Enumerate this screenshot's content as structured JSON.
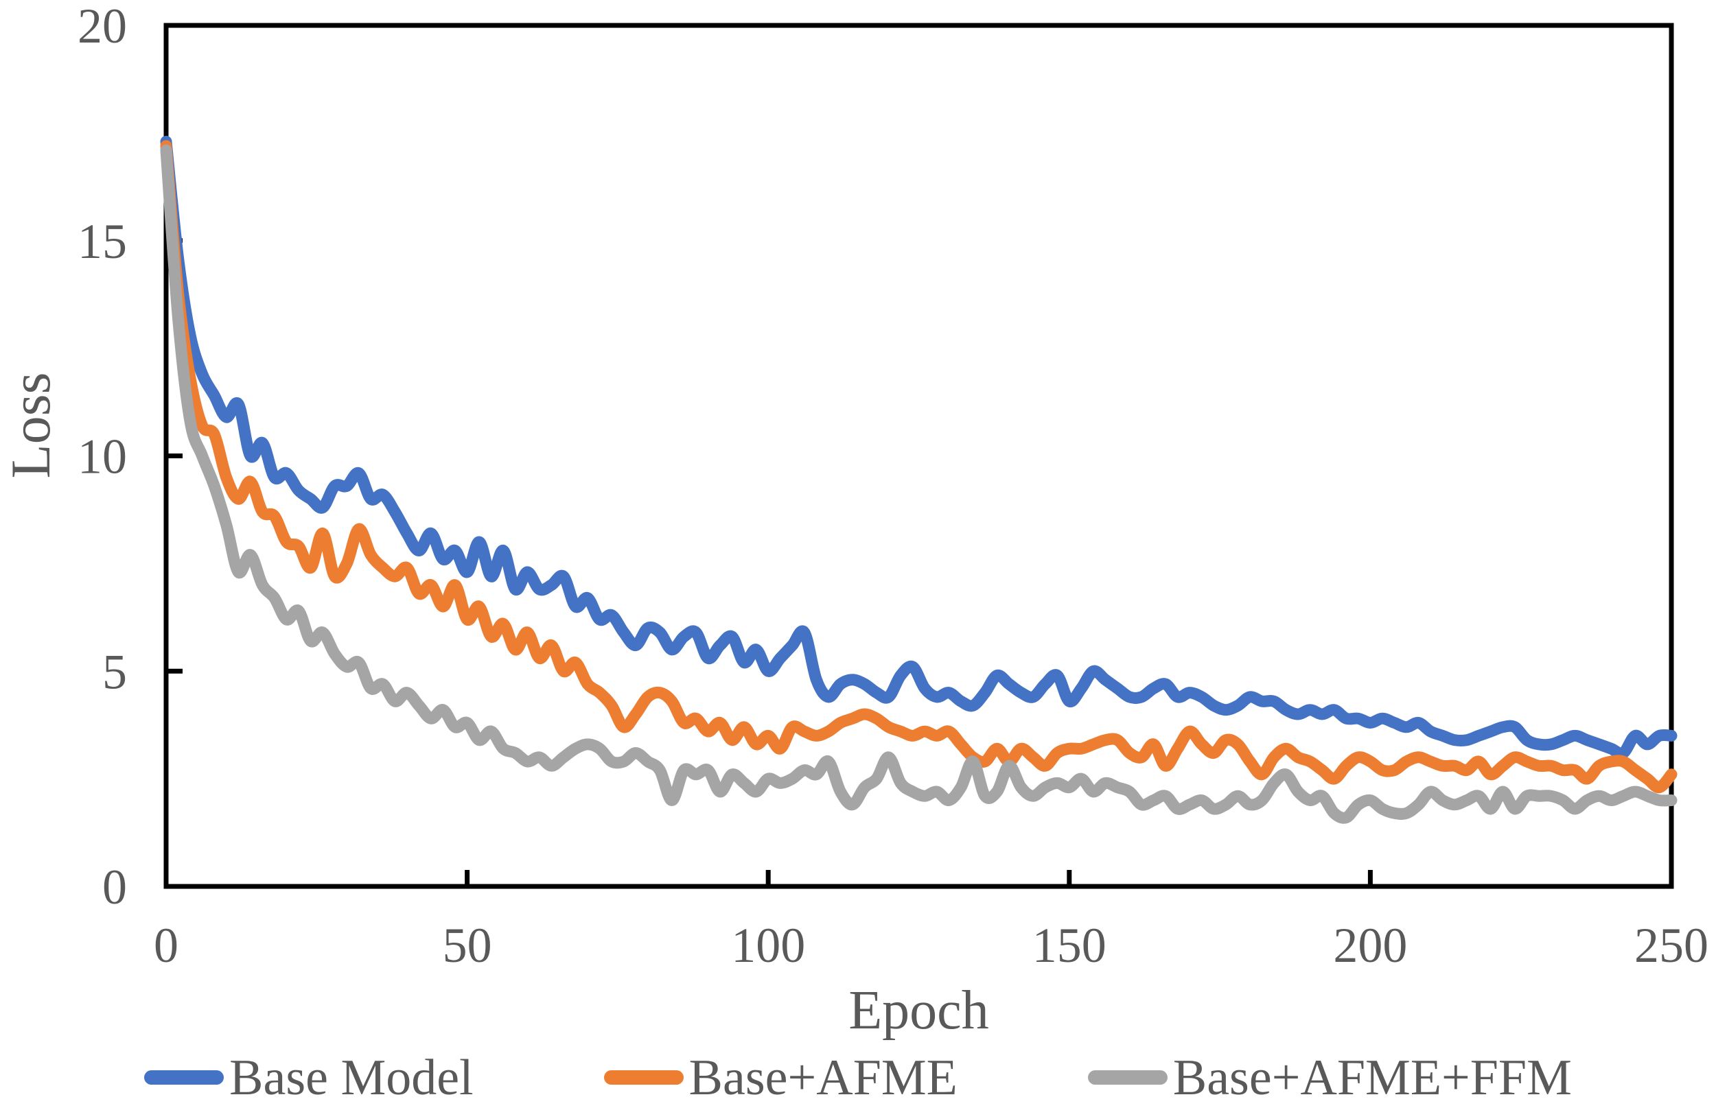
{
  "colors": {
    "background": "#FFFFFF",
    "axis_line": "#000000",
    "axis_text": "#595959",
    "series_blue": "#4472C4",
    "series_orange": "#ED7D31",
    "series_gray": "#A5A5A5"
  },
  "chart_data": {
    "type": "line",
    "title": "",
    "xlabel": "Epoch",
    "ylabel": "Loss",
    "xlim": [
      0,
      250
    ],
    "ylim": [
      0,
      20
    ],
    "x_ticks": [
      0,
      50,
      100,
      150,
      200,
      250
    ],
    "y_ticks": [
      0,
      5,
      10,
      15,
      20
    ],
    "grid": false,
    "legend_position": "bottom",
    "x": [
      0,
      2,
      4,
      6,
      8,
      10,
      12,
      14,
      16,
      18,
      20,
      22,
      24,
      26,
      28,
      30,
      32,
      34,
      36,
      38,
      40,
      42,
      44,
      46,
      48,
      50,
      52,
      54,
      56,
      58,
      60,
      62,
      64,
      66,
      68,
      70,
      72,
      74,
      76,
      78,
      80,
      82,
      84,
      86,
      88,
      90,
      92,
      94,
      96,
      98,
      100,
      102,
      104,
      106,
      108,
      110,
      112,
      114,
      116,
      118,
      120,
      122,
      124,
      126,
      128,
      130,
      132,
      134,
      136,
      138,
      140,
      142,
      144,
      146,
      148,
      150,
      152,
      154,
      156,
      158,
      160,
      162,
      164,
      166,
      168,
      170,
      172,
      174,
      176,
      178,
      180,
      182,
      184,
      186,
      188,
      190,
      192,
      194,
      196,
      198,
      200,
      202,
      204,
      206,
      208,
      210,
      212,
      214,
      216,
      218,
      220,
      222,
      224,
      226,
      228,
      230,
      232,
      234,
      236,
      238,
      240,
      242,
      244,
      246,
      248,
      250
    ],
    "series": [
      {
        "name": "Base Model",
        "color": "#4472C4",
        "values": [
          17.3,
          14.6,
          12.8,
          11.9,
          11.4,
          10.9,
          11.2,
          10.0,
          10.3,
          9.5,
          9.6,
          9.2,
          9.0,
          8.8,
          9.3,
          9.3,
          9.6,
          9.0,
          9.1,
          8.7,
          8.2,
          7.8,
          8.2,
          7.6,
          7.8,
          7.3,
          8.0,
          7.2,
          7.8,
          6.9,
          7.3,
          6.9,
          7.0,
          7.2,
          6.5,
          6.7,
          6.2,
          6.3,
          5.9,
          5.6,
          6.0,
          5.9,
          5.5,
          5.8,
          5.9,
          5.3,
          5.6,
          5.8,
          5.2,
          5.5,
          5.0,
          5.3,
          5.6,
          5.9,
          4.8,
          4.4,
          4.7,
          4.8,
          4.7,
          4.5,
          4.4,
          4.9,
          5.1,
          4.6,
          4.4,
          4.5,
          4.3,
          4.2,
          4.5,
          4.9,
          4.7,
          4.5,
          4.4,
          4.7,
          4.9,
          4.3,
          4.6,
          5.0,
          4.8,
          4.6,
          4.4,
          4.4,
          4.6,
          4.7,
          4.4,
          4.5,
          4.4,
          4.2,
          4.1,
          4.2,
          4.4,
          4.3,
          4.3,
          4.1,
          4.0,
          4.1,
          4.0,
          4.1,
          3.9,
          3.9,
          3.8,
          3.9,
          3.8,
          3.7,
          3.8,
          3.6,
          3.5,
          3.4,
          3.4,
          3.5,
          3.6,
          3.7,
          3.7,
          3.4,
          3.3,
          3.3,
          3.4,
          3.5,
          3.4,
          3.3,
          3.2,
          3.1,
          3.5,
          3.3,
          3.5,
          3.5
        ]
      },
      {
        "name": "Base+AFME",
        "color": "#ED7D31",
        "values": [
          17.2,
          13.8,
          11.8,
          10.7,
          10.5,
          9.5,
          9.0,
          9.4,
          8.7,
          8.6,
          8.0,
          7.9,
          7.4,
          8.2,
          7.2,
          7.5,
          8.3,
          7.7,
          7.4,
          7.2,
          7.4,
          6.8,
          7.0,
          6.5,
          7.0,
          6.2,
          6.5,
          5.8,
          6.1,
          5.5,
          5.9,
          5.3,
          5.6,
          5.0,
          5.2,
          4.7,
          4.5,
          4.2,
          3.7,
          4.0,
          4.4,
          4.5,
          4.3,
          3.8,
          3.9,
          3.6,
          3.8,
          3.4,
          3.7,
          3.3,
          3.5,
          3.2,
          3.7,
          3.6,
          3.5,
          3.6,
          3.8,
          3.9,
          4.0,
          3.9,
          3.7,
          3.6,
          3.5,
          3.6,
          3.5,
          3.6,
          3.3,
          3.0,
          2.9,
          3.2,
          2.9,
          3.2,
          3.0,
          2.8,
          3.1,
          3.2,
          3.2,
          3.3,
          3.4,
          3.4,
          3.1,
          3.0,
          3.3,
          2.8,
          3.2,
          3.6,
          3.3,
          3.1,
          3.4,
          3.3,
          2.9,
          2.6,
          3.0,
          3.2,
          3.0,
          2.9,
          2.7,
          2.5,
          2.8,
          3.0,
          2.9,
          2.7,
          2.7,
          2.9,
          3.0,
          2.9,
          2.8,
          2.8,
          2.7,
          2.9,
          2.6,
          2.8,
          3.0,
          2.9,
          2.8,
          2.8,
          2.7,
          2.7,
          2.5,
          2.8,
          2.9,
          2.9,
          2.7,
          2.5,
          2.3,
          2.6
        ]
      },
      {
        "name": "Base+AFME+FFM",
        "color": "#A5A5A5",
        "values": [
          17.1,
          13.2,
          10.8,
          10.0,
          9.3,
          8.4,
          7.3,
          7.7,
          7.0,
          6.7,
          6.2,
          6.4,
          5.7,
          5.9,
          5.4,
          5.1,
          5.2,
          4.6,
          4.7,
          4.3,
          4.5,
          4.2,
          3.9,
          4.1,
          3.7,
          3.8,
          3.4,
          3.6,
          3.2,
          3.1,
          2.9,
          3.0,
          2.8,
          3.0,
          3.2,
          3.3,
          3.2,
          2.9,
          2.9,
          3.1,
          2.9,
          2.7,
          2.0,
          2.7,
          2.6,
          2.7,
          2.2,
          2.6,
          2.4,
          2.2,
          2.5,
          2.4,
          2.5,
          2.7,
          2.6,
          2.9,
          2.2,
          1.9,
          2.3,
          2.5,
          3.0,
          2.4,
          2.2,
          2.1,
          2.2,
          2.0,
          2.3,
          2.9,
          2.1,
          2.2,
          2.8,
          2.3,
          2.1,
          2.3,
          2.4,
          2.3,
          2.5,
          2.2,
          2.4,
          2.3,
          2.2,
          1.9,
          2.0,
          2.1,
          1.8,
          1.9,
          2.0,
          1.8,
          1.9,
          2.1,
          1.9,
          2.0,
          2.4,
          2.6,
          2.2,
          2.0,
          2.1,
          1.7,
          1.6,
          1.9,
          2.0,
          1.8,
          1.7,
          1.7,
          1.9,
          2.2,
          2.0,
          1.9,
          2.0,
          2.1,
          1.8,
          2.2,
          1.8,
          2.1,
          2.1,
          2.1,
          2.0,
          1.8,
          2.0,
          2.1,
          2.0,
          2.1,
          2.2,
          2.1,
          2.0,
          2.0
        ]
      }
    ]
  }
}
